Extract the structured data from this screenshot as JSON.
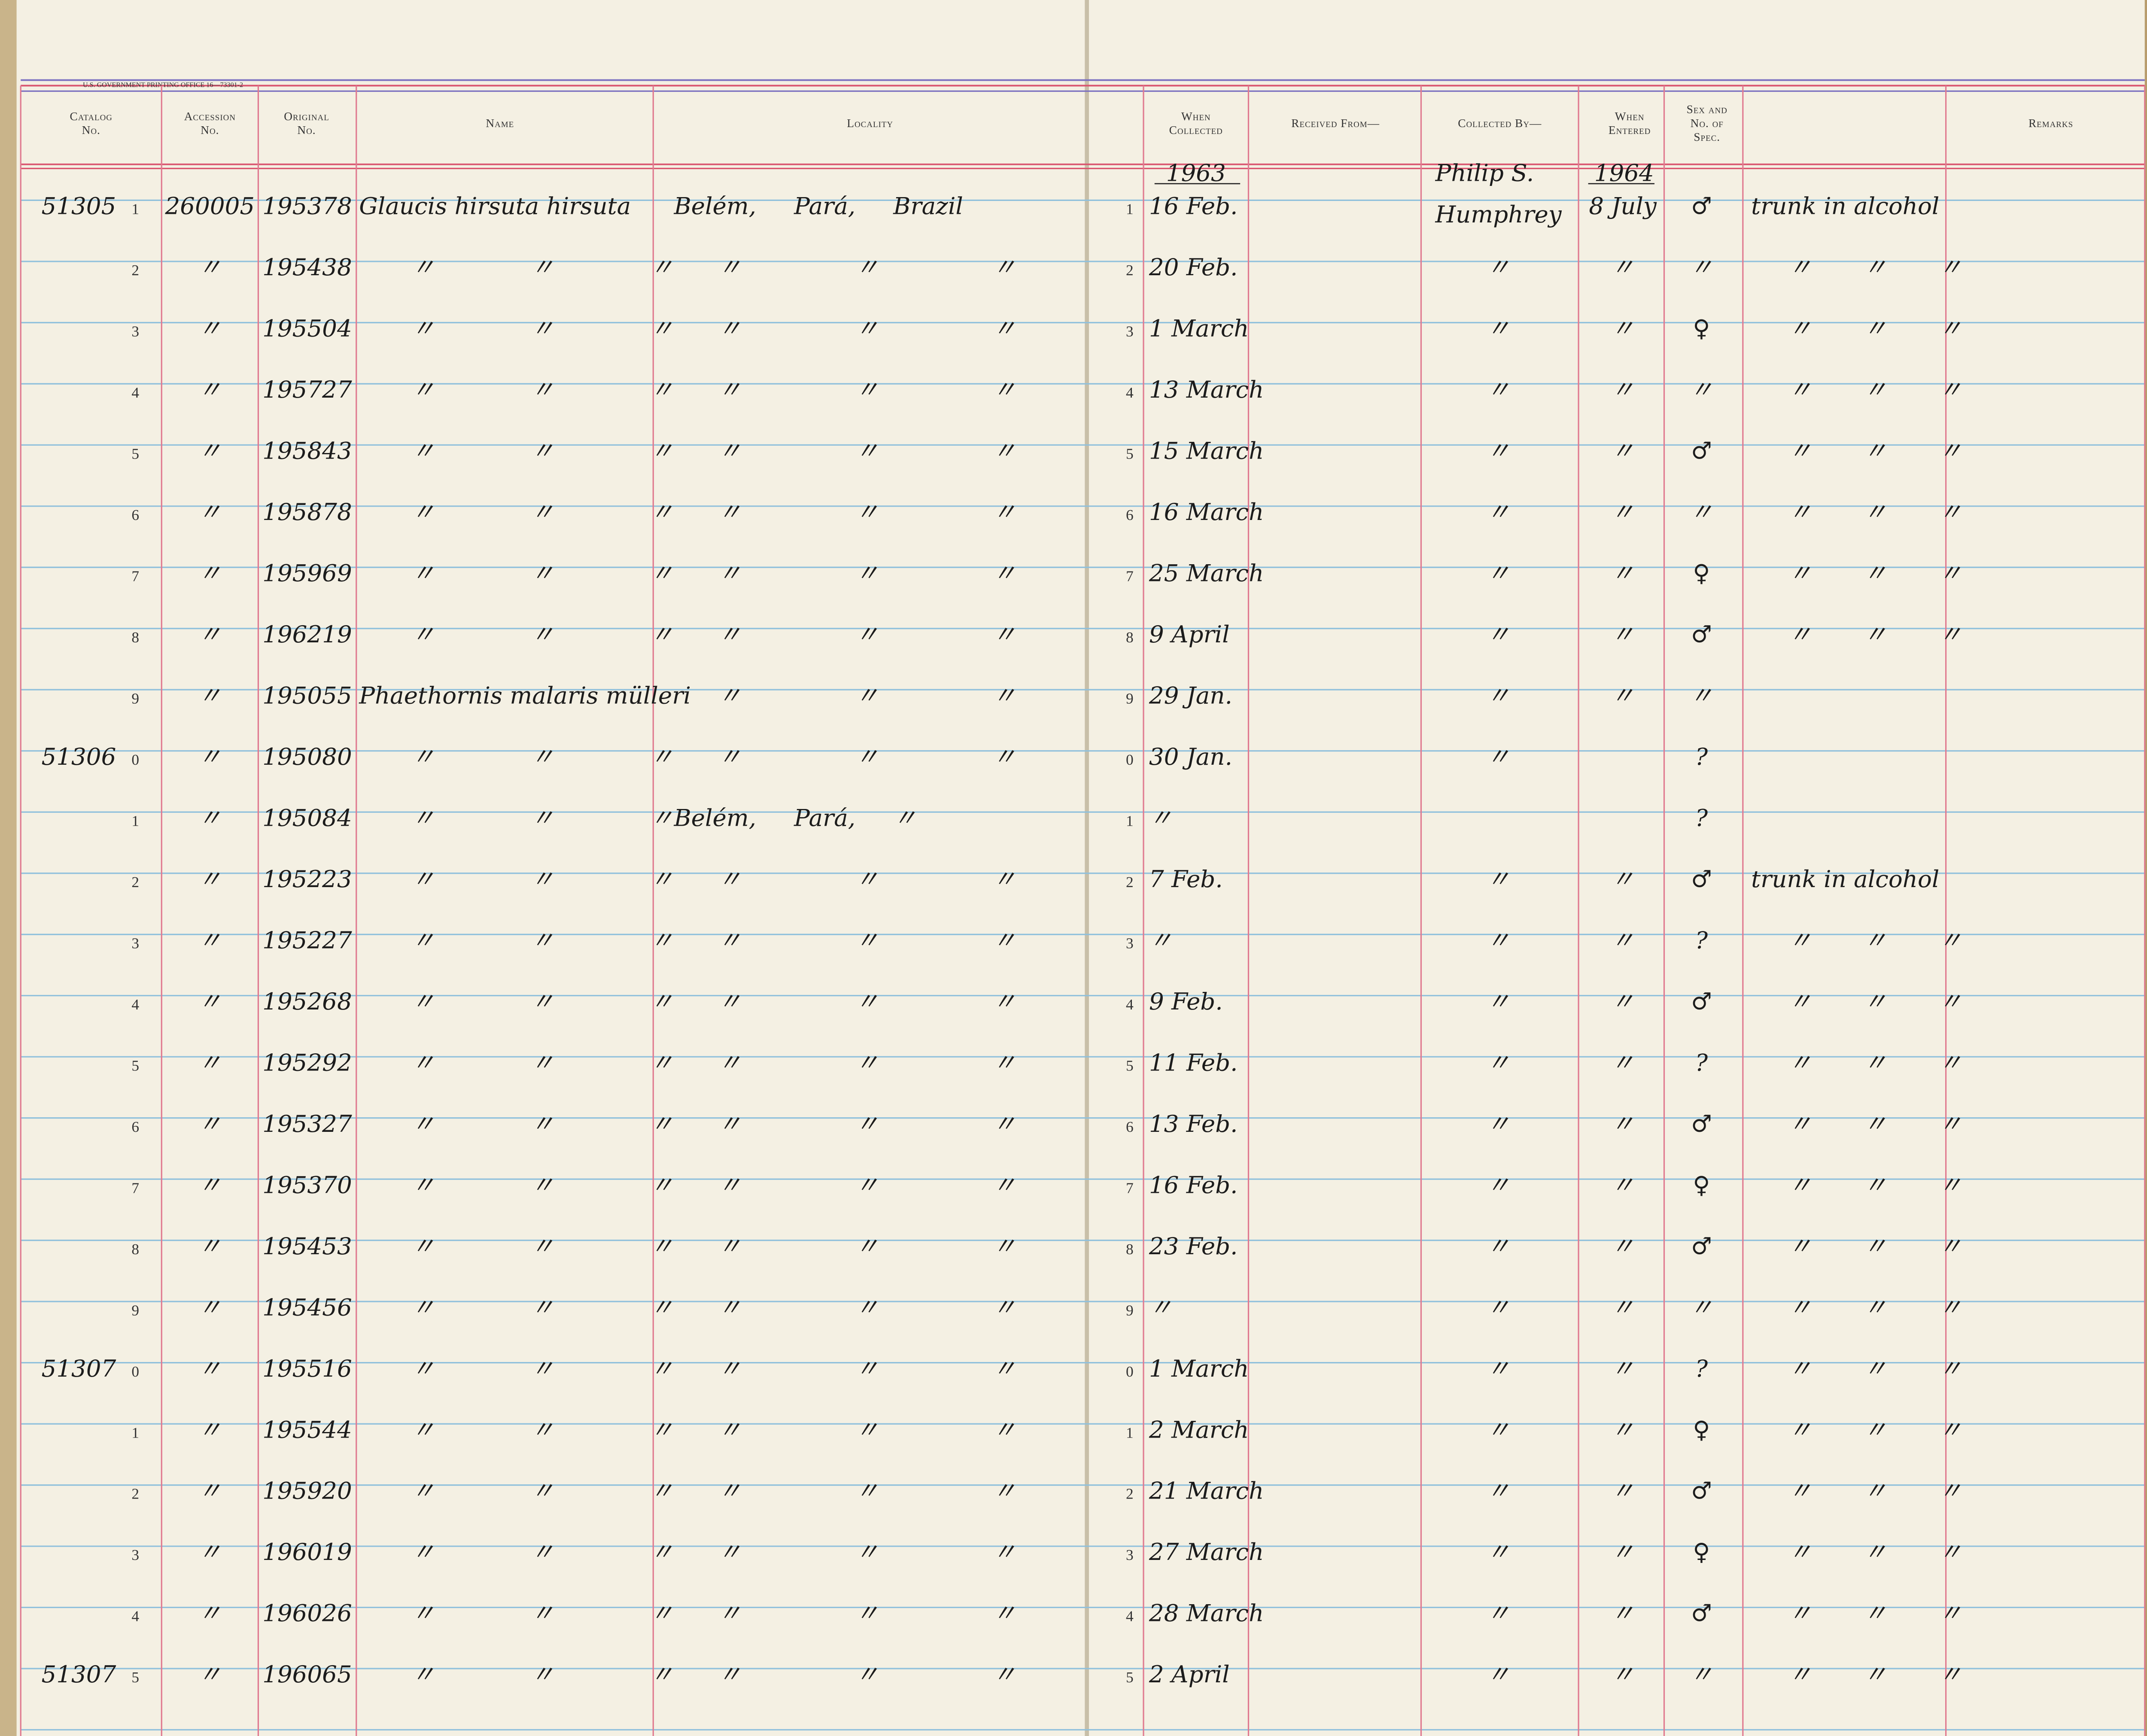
{
  "ledger": {
    "printer_note": "U.S. GOVERNMENT PRINTING OFFICE 16—73301-2",
    "headers": [
      [
        "Catalog",
        "No."
      ],
      [
        "Accession",
        "No."
      ],
      [
        "Original",
        "No."
      ],
      [
        "Name"
      ],
      [
        "Locality"
      ],
      [
        "When",
        "Collected"
      ],
      [
        "Received From—"
      ],
      [
        "Collected By—"
      ],
      [
        "When",
        "Entered"
      ],
      [
        "Sex and",
        "No. of",
        "Spec."
      ],
      [
        "Remarks"
      ]
    ],
    "year_row": {
      "d": "1963",
      "cb": "Philip S.",
      "e": "1964"
    },
    "rows": [
      {
        "c": "51305",
        "n": "1",
        "a": "260005",
        "o": "195378",
        "nm": "Glaucis hirsuta hirsuta",
        "l": "Belém, Pará, Brazil",
        "n2": "1",
        "d": "16 Feb.",
        "cb": "Humphrey",
        "e": "8 July",
        "s": "♂",
        "r": "trunk in alcohol"
      },
      {
        "n": "2",
        "a": "〃",
        "o": "195438",
        "nm": "〃 〃 〃",
        "l": "〃 〃 〃",
        "n2": "2",
        "d": "20 Feb.",
        "cb": "〃",
        "e": "〃",
        "s": "〃",
        "r": "〃 〃 〃"
      },
      {
        "n": "3",
        "a": "〃",
        "o": "195504",
        "nm": "〃 〃 〃",
        "l": "〃 〃 〃",
        "n2": "3",
        "d": "1 March",
        "cb": "〃",
        "e": "〃",
        "s": "♀",
        "r": "〃 〃 〃"
      },
      {
        "n": "4",
        "a": "〃",
        "o": "195727",
        "nm": "〃 〃 〃",
        "l": "〃 〃 〃",
        "n2": "4",
        "d": "13 March",
        "cb": "〃",
        "e": "〃",
        "s": "〃",
        "r": "〃 〃 〃"
      },
      {
        "n": "5",
        "a": "〃",
        "o": "195843",
        "nm": "〃 〃 〃",
        "l": "〃 〃 〃",
        "n2": "5",
        "d": "15 March",
        "cb": "〃",
        "e": "〃",
        "s": "♂",
        "r": "〃 〃 〃"
      },
      {
        "n": "6",
        "a": "〃",
        "o": "195878",
        "nm": "〃 〃 〃",
        "l": "〃 〃 〃",
        "n2": "6",
        "d": "16 March",
        "cb": "〃",
        "e": "〃",
        "s": "〃",
        "r": "〃 〃 〃"
      },
      {
        "n": "7",
        "a": "〃",
        "o": "195969",
        "nm": "〃 〃 〃",
        "l": "〃 〃 〃",
        "n2": "7",
        "d": "25 March",
        "cb": "〃",
        "e": "〃",
        "s": "♀",
        "r": "〃 〃 〃"
      },
      {
        "n": "8",
        "a": "〃",
        "o": "196219",
        "nm": "〃 〃 〃",
        "l": "〃 〃 〃",
        "n2": "8",
        "d": "9 April",
        "cb": "〃",
        "e": "〃",
        "s": "♂",
        "r": "〃 〃 〃"
      },
      {
        "n": "9",
        "a": "〃",
        "o": "195055",
        "nm": "Phaethornis malaris mülleri",
        "l": "〃 〃 〃",
        "n2": "9",
        "d": "29 Jan.",
        "cb": "〃",
        "e": "〃",
        "s": "〃"
      },
      {
        "c": "51306",
        "n": "0",
        "a": "〃",
        "o": "195080",
        "nm": "〃 〃 〃",
        "l": "〃 〃 〃",
        "n2": "0",
        "d": "30 Jan.",
        "cb": "〃",
        "s": "?"
      },
      {
        "n": "1",
        "a": "〃",
        "o": "195084",
        "nm": "〃 〃 〃",
        "l": "Belém, Pará, 〃",
        "n2": "1",
        "d": "〃",
        "s": "?"
      },
      {
        "n": "2",
        "a": "〃",
        "o": "195223",
        "nm": "〃 〃 〃",
        "l": "〃 〃 〃",
        "n2": "2",
        "d": "7 Feb.",
        "cb": "〃",
        "e": "〃",
        "s": "♂",
        "r": "trunk in alcohol"
      },
      {
        "n": "3",
        "a": "〃",
        "o": "195227",
        "nm": "〃 〃 〃",
        "l": "〃 〃 〃",
        "n2": "3",
        "d": "〃",
        "cb": "〃",
        "e": "〃",
        "s": "?",
        "r": "〃 〃 〃"
      },
      {
        "n": "4",
        "a": "〃",
        "o": "195268",
        "nm": "〃 〃 〃",
        "l": "〃 〃 〃",
        "n2": "4",
        "d": "9 Feb.",
        "cb": "〃",
        "e": "〃",
        "s": "♂",
        "r": "〃 〃 〃"
      },
      {
        "n": "5",
        "a": "〃",
        "o": "195292",
        "nm": "〃 〃 〃",
        "l": "〃 〃 〃",
        "n2": "5",
        "d": "11 Feb.",
        "cb": "〃",
        "e": "〃",
        "s": "?",
        "r": "〃 〃 〃"
      },
      {
        "n": "6",
        "a": "〃",
        "o": "195327",
        "nm": "〃 〃 〃",
        "l": "〃 〃 〃",
        "n2": "6",
        "d": "13 Feb.",
        "cb": "〃",
        "e": "〃",
        "s": "♂",
        "r": "〃 〃 〃"
      },
      {
        "n": "7",
        "a": "〃",
        "o": "195370",
        "nm": "〃 〃 〃",
        "l": "〃 〃 〃",
        "n2": "7",
        "d": "16 Feb.",
        "cb": "〃",
        "e": "〃",
        "s": "♀",
        "r": "〃 〃 〃"
      },
      {
        "n": "8",
        "a": "〃",
        "o": "195453",
        "nm": "〃 〃 〃",
        "l": "〃 〃 〃",
        "n2": "8",
        "d": "23 Feb.",
        "cb": "〃",
        "e": "〃",
        "s": "♂",
        "r": "〃 〃 〃"
      },
      {
        "n": "9",
        "a": "〃",
        "o": "195456",
        "nm": "〃 〃 〃",
        "l": "〃 〃 〃",
        "n2": "9",
        "d": "〃",
        "cb": "〃",
        "e": "〃",
        "s": "〃",
        "r": "〃 〃 〃"
      },
      {
        "c": "51307",
        "n": "0",
        "a": "〃",
        "o": "195516",
        "nm": "〃 〃 〃",
        "l": "〃 〃 〃",
        "n2": "0",
        "d": "1 March",
        "cb": "〃",
        "e": "〃",
        "s": "?",
        "r": "〃 〃 〃"
      },
      {
        "n": "1",
        "a": "〃",
        "o": "195544",
        "nm": "〃 〃 〃",
        "l": "〃 〃 〃",
        "n2": "1",
        "d": "2 March",
        "cb": "〃",
        "e": "〃",
        "s": "♀",
        "r": "〃 〃 〃"
      },
      {
        "n": "2",
        "a": "〃",
        "o": "195920",
        "nm": "〃 〃 〃",
        "l": "〃 〃 〃",
        "n2": "2",
        "d": "21 March",
        "cb": "〃",
        "e": "〃",
        "s": "♂",
        "r": "〃 〃 〃"
      },
      {
        "n": "3",
        "a": "〃",
        "o": "196019",
        "nm": "〃 〃 〃",
        "l": "〃 〃 〃",
        "n2": "3",
        "d": "27 March",
        "cb": "〃",
        "e": "〃",
        "s": "♀",
        "r": "〃 〃 〃"
      },
      {
        "n": "4",
        "a": "〃",
        "o": "196026",
        "nm": "〃 〃 〃",
        "l": "〃 〃 〃",
        "n2": "4",
        "d": "28 March",
        "cb": "〃",
        "e": "〃",
        "s": "♂",
        "r": "〃 〃 〃"
      },
      {
        "c": "51307",
        "n": "5",
        "a": "〃",
        "o": "196065",
        "nm": "〃 〃 〃",
        "l": "〃 〃 〃",
        "n2": "5",
        "d": "2 April",
        "cb": "〃",
        "e": "〃",
        "s": "〃",
        "r": "〃 〃 〃"
      }
    ]
  }
}
